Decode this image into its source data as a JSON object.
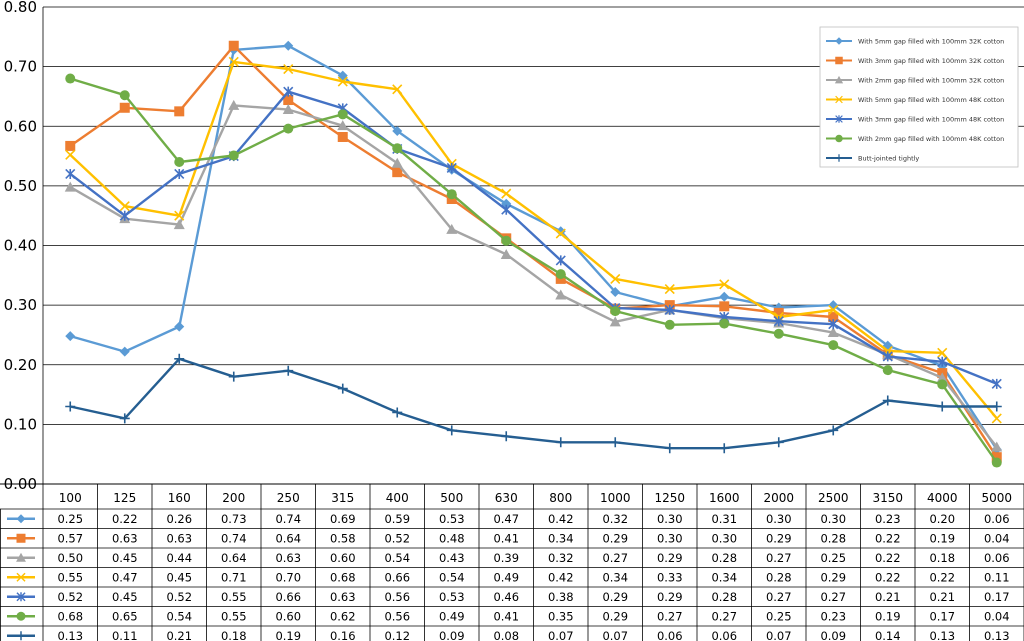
{
  "chart_data": {
    "type": "line",
    "x": [
      "100",
      "125",
      "160",
      "200",
      "250",
      "315",
      "400",
      "500",
      "630",
      "800",
      "1000",
      "1250",
      "1600",
      "2000",
      "2500",
      "3150",
      "4000",
      "5000"
    ],
    "ylim": [
      0,
      0.8
    ],
    "yticks": [
      "0.00",
      "0.10",
      "0.20",
      "0.30",
      "0.40",
      "0.50",
      "0.60",
      "0.70",
      "0.80"
    ],
    "grid": true,
    "legend_position": "top-right",
    "series": [
      {
        "name": "With 5mm gap filled with 100mm 32K cotton",
        "color": "#5B9BD5",
        "marker": "diamond",
        "values": [
          0.248,
          0.222,
          0.264,
          0.728,
          0.735,
          0.685,
          0.592,
          0.527,
          0.47,
          0.424,
          0.322,
          0.298,
          0.314,
          0.296,
          0.3,
          0.232,
          0.198,
          0.058
        ],
        "labels": [
          "0.25",
          "0.22",
          "0.26",
          "0.73",
          "0.74",
          "0.69",
          "0.59",
          "0.53",
          "0.47",
          "0.42",
          "0.32",
          "0.30",
          "0.31",
          "0.30",
          "0.30",
          "0.23",
          "0.20",
          "0.06"
        ]
      },
      {
        "name": "With 3mm gap filled with 100mm 32K cotton",
        "color": "#ED7D31",
        "marker": "square",
        "values": [
          0.567,
          0.631,
          0.625,
          0.735,
          0.644,
          0.582,
          0.523,
          0.478,
          0.412,
          0.344,
          0.294,
          0.3,
          0.298,
          0.287,
          0.28,
          0.217,
          0.186,
          0.045
        ],
        "labels": [
          "0.57",
          "0.63",
          "0.63",
          "0.74",
          "0.64",
          "0.58",
          "0.52",
          "0.48",
          "0.41",
          "0.34",
          "0.29",
          "0.30",
          "0.30",
          "0.29",
          "0.28",
          "0.22",
          "0.19",
          "0.04"
        ]
      },
      {
        "name": "With 2mm gap filled with 100mm 32K cotton",
        "color": "#A5A5A5",
        "marker": "triangle",
        "values": [
          0.498,
          0.445,
          0.435,
          0.635,
          0.628,
          0.601,
          0.538,
          0.427,
          0.385,
          0.317,
          0.272,
          0.292,
          0.278,
          0.27,
          0.254,
          0.217,
          0.178,
          0.062
        ],
        "labels": [
          "0.50",
          "0.45",
          "0.44",
          "0.64",
          "0.63",
          "0.60",
          "0.54",
          "0.43",
          "0.39",
          "0.32",
          "0.27",
          "0.29",
          "0.28",
          "0.27",
          "0.25",
          "0.22",
          "0.18",
          "0.06"
        ]
      },
      {
        "name": "With 5mm gap filled with 100mm 48K cotton",
        "color": "#FFC000",
        "marker": "x",
        "values": [
          0.552,
          0.466,
          0.45,
          0.708,
          0.696,
          0.675,
          0.662,
          0.537,
          0.487,
          0.42,
          0.344,
          0.327,
          0.335,
          0.28,
          0.292,
          0.223,
          0.22,
          0.11
        ],
        "labels": [
          "0.55",
          "0.47",
          "0.45",
          "0.71",
          "0.70",
          "0.68",
          "0.66",
          "0.54",
          "0.49",
          "0.42",
          "0.34",
          "0.33",
          "0.34",
          "0.28",
          "0.29",
          "0.22",
          "0.22",
          "0.11"
        ]
      },
      {
        "name": "With 3mm gap filled with 100mm 48K cotton",
        "color": "#4472C4",
        "marker": "star",
        "values": [
          0.52,
          0.45,
          0.52,
          0.55,
          0.658,
          0.63,
          0.562,
          0.53,
          0.46,
          0.375,
          0.295,
          0.292,
          0.28,
          0.273,
          0.268,
          0.214,
          0.205,
          0.168
        ],
        "labels": [
          "0.52",
          "0.45",
          "0.52",
          "0.55",
          "0.66",
          "0.63",
          "0.56",
          "0.53",
          "0.46",
          "0.38",
          "0.29",
          "0.29",
          "0.28",
          "0.27",
          "0.27",
          "0.21",
          "0.21",
          "0.17"
        ]
      },
      {
        "name": "With 2mm gap filled with 100mm 48K cotton",
        "color": "#70AD47",
        "marker": "circle",
        "values": [
          0.68,
          0.652,
          0.54,
          0.551,
          0.596,
          0.62,
          0.563,
          0.486,
          0.408,
          0.352,
          0.29,
          0.267,
          0.269,
          0.252,
          0.233,
          0.191,
          0.167,
          0.036
        ],
        "labels": [
          "0.68",
          "0.65",
          "0.54",
          "0.55",
          "0.60",
          "0.62",
          "0.56",
          "0.49",
          "0.41",
          "0.35",
          "0.29",
          "0.27",
          "0.27",
          "0.25",
          "0.23",
          "0.19",
          "0.17",
          "0.04"
        ]
      },
      {
        "name": "Butt-jointed tightly",
        "color": "#255E91",
        "marker": "plus",
        "values": [
          0.13,
          0.11,
          0.21,
          0.18,
          0.19,
          0.16,
          0.12,
          0.09,
          0.08,
          0.07,
          0.07,
          0.06,
          0.06,
          0.07,
          0.09,
          0.14,
          0.13,
          0.13
        ],
        "labels": [
          "0.13",
          "0.11",
          "0.21",
          "0.18",
          "0.19",
          "0.16",
          "0.12",
          "0.09",
          "0.08",
          "0.07",
          "0.07",
          "0.06",
          "0.06",
          "0.07",
          "0.09",
          "0.14",
          "0.13",
          "0.13"
        ]
      }
    ]
  }
}
